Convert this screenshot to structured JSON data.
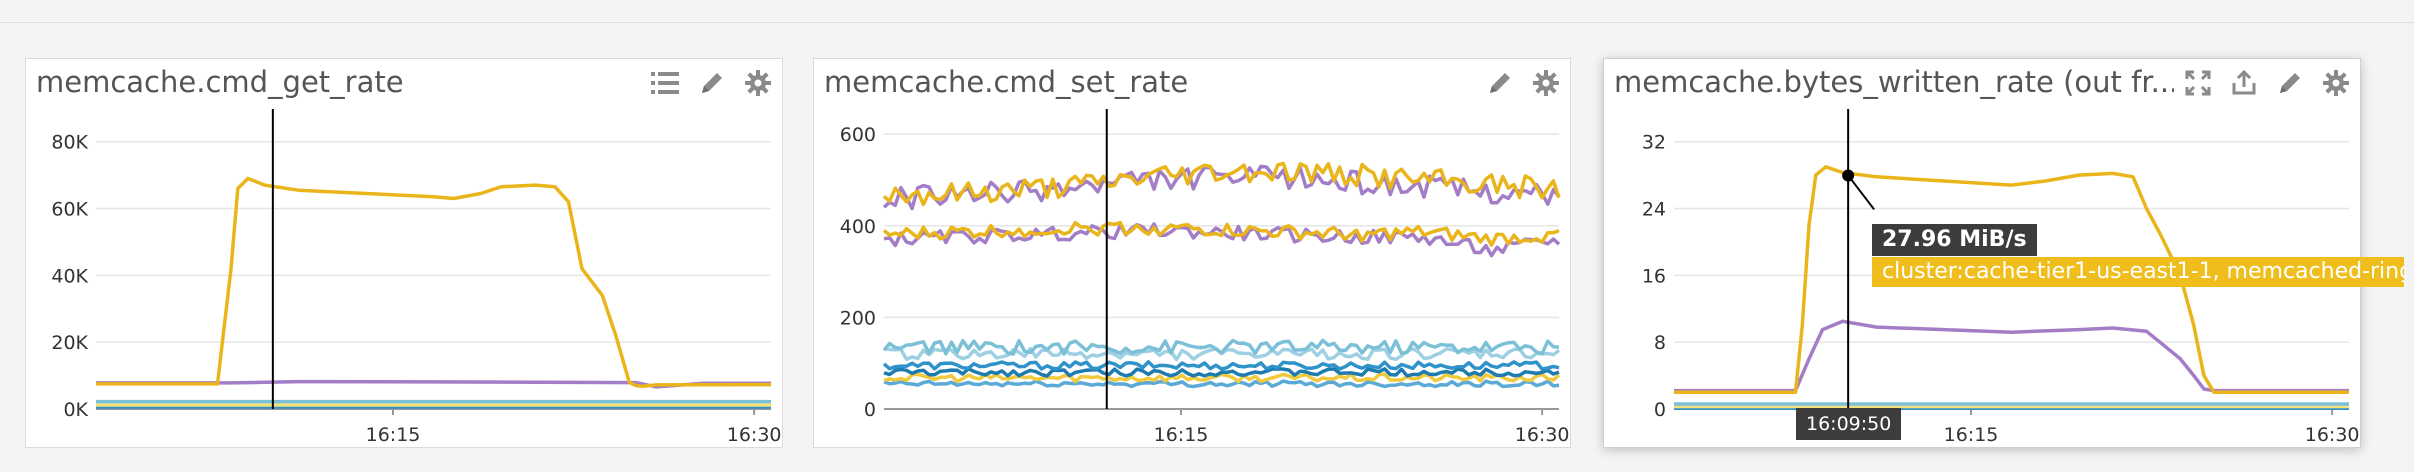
{
  "widgets": [
    {
      "title": "memcache.cmd_get_rate",
      "tools": [
        "list-icon",
        "pencil-icon",
        "gear-icon"
      ],
      "chart_data": {
        "type": "line",
        "y_ticks": [
          "80K",
          "60K",
          "40K",
          "20K",
          "0K"
        ],
        "x_ticks": [
          "16:15",
          "16:30"
        ],
        "ylim": [
          0,
          85000
        ],
        "xlim": [
          0,
          1
        ],
        "grid": true,
        "series": [
          {
            "color": "#e9b51a",
            "x": [
              0,
              0.18,
              0.2,
              0.21,
              0.225,
              0.25,
              0.3,
              0.4,
              0.5,
              0.53,
              0.57,
              0.6,
              0.65,
              0.68,
              0.7,
              0.72,
              0.75,
              0.77,
              0.79,
              0.8,
              0.81,
              0.83,
              1
            ],
            "y": [
              7500,
              7500,
              42000,
              66000,
              69000,
              67000,
              65500,
              64500,
              63500,
              63000,
              64500,
              66500,
              67000,
              66500,
              62000,
              42000,
              34000,
              22000,
              8000,
              7000,
              6800,
              7200,
              7300
            ]
          },
          {
            "color": "#a47dc7",
            "x": [
              0,
              0.2,
              0.3,
              0.5,
              0.8,
              0.83,
              0.9,
              1
            ],
            "y": [
              7800,
              7800,
              8200,
              8100,
              7900,
              6600,
              7700,
              7700
            ]
          },
          {
            "color": "#7cc0d8",
            "x": [
              0,
              1
            ],
            "y": [
              2200,
              2200
            ]
          },
          {
            "color": "#f3e27a",
            "x": [
              0,
              1
            ],
            "y": [
              1200,
              1200
            ]
          },
          {
            "color": "#2f93c9",
            "x": [
              0,
              1
            ],
            "y": [
              600,
              600
            ]
          }
        ],
        "cursor_x": 0.262
      }
    },
    {
      "title": "memcache.cmd_set_rate",
      "tools": [
        "pencil-icon",
        "gear-icon"
      ],
      "chart_data": {
        "type": "line",
        "y_ticks": [
          "600",
          "400",
          "200",
          "0"
        ],
        "x_ticks": [
          "16:15",
          "16:30"
        ],
        "ylim": [
          0,
          620
        ],
        "xlim": [
          0,
          1
        ],
        "grid": true,
        "series": [
          {
            "color": "#e9b51a",
            "base": [
              470,
              470,
              480,
              490,
              510,
              520,
              520,
              510,
              500,
              490,
              480
            ],
            "noise": 25
          },
          {
            "color": "#a47dc7",
            "base": [
              460,
              465,
              475,
              485,
              500,
              505,
              505,
              495,
              485,
              475,
              465
            ],
            "noise": 25
          },
          {
            "color": "#e9b51a",
            "base": [
              380,
              385,
              390,
              395,
              395,
              390,
              385,
              380,
              385,
              370,
              380
            ],
            "noise": 15
          },
          {
            "color": "#a47dc7",
            "base": [
              370,
              375,
              380,
              385,
              390,
              385,
              380,
              375,
              375,
              345,
              370
            ],
            "noise": 15
          },
          {
            "color": "#7cc0d8",
            "base": [
              135,
              135,
              135,
              135,
              135,
              135,
              135,
              135,
              135,
              135,
              135
            ],
            "noise": 15
          },
          {
            "color": "#9dd0e3",
            "base": [
              120,
              120,
              120,
              120,
              120,
              120,
              120,
              120,
              120,
              120,
              120
            ],
            "noise": 12
          },
          {
            "color": "#2f93c9",
            "base": [
              95,
              95,
              95,
              95,
              95,
              95,
              95,
              95,
              95,
              95,
              95
            ],
            "noise": 8
          },
          {
            "color": "#1d7bb0",
            "base": [
              80,
              80,
              80,
              80,
              80,
              80,
              80,
              80,
              80,
              80,
              80
            ],
            "noise": 8
          },
          {
            "color": "#f0c93c",
            "base": [
              68,
              68,
              68,
              68,
              68,
              68,
              68,
              68,
              68,
              68,
              68
            ],
            "noise": 8
          },
          {
            "color": "#5aa9d6",
            "base": [
              55,
              55,
              55,
              55,
              55,
              55,
              55,
              55,
              55,
              55,
              55
            ],
            "noise": 6
          }
        ],
        "cursor_x": 0.33
      }
    },
    {
      "title": "memcache.bytes_written_rate (out fr...",
      "tools": [
        "expand-icon",
        "share-icon",
        "pencil-icon",
        "gear-icon"
      ],
      "chart_data": {
        "type": "line",
        "y_ticks": [
          "32",
          "24",
          "16",
          "8",
          "0"
        ],
        "x_ticks": [
          "16:15",
          "16:30"
        ],
        "ylim": [
          0,
          34
        ],
        "xlim": [
          0,
          1
        ],
        "grid": true,
        "series": [
          {
            "color": "#e9b51a",
            "x": [
              0,
              0.18,
              0.19,
              0.2,
              0.21,
              0.225,
              0.25,
              0.3,
              0.4,
              0.5,
              0.55,
              0.6,
              0.65,
              0.68,
              0.7,
              0.72,
              0.75,
              0.77,
              0.785,
              0.8,
              0.85,
              1
            ],
            "y": [
              2,
              2,
              10,
              22,
              28,
              29,
              28.3,
              27.8,
              27.3,
              26.8,
              27.3,
              28,
              28.2,
              27.8,
              24,
              21,
              16,
              10,
              4,
              2,
              2,
              2
            ]
          },
          {
            "color": "#a47dc7",
            "x": [
              0,
              0.18,
              0.2,
              0.22,
              0.25,
              0.3,
              0.4,
              0.5,
              0.6,
              0.65,
              0.7,
              0.72,
              0.75,
              0.77,
              0.785,
              0.8,
              1
            ],
            "y": [
              2.2,
              2.2,
              6,
              9.5,
              10.5,
              9.8,
              9.5,
              9.2,
              9.5,
              9.7,
              9.3,
              8,
              6,
              4,
              2.4,
              2.2,
              2.2
            ]
          },
          {
            "color": "#7cc0d8",
            "x": [
              0,
              1
            ],
            "y": [
              0.6,
              0.6
            ]
          },
          {
            "color": "#f3e27a",
            "x": [
              0,
              1
            ],
            "y": [
              0.3,
              0.3
            ]
          },
          {
            "color": "#2f93c9",
            "x": [
              0,
              1
            ],
            "y": [
              0.1,
              0.1
            ]
          }
        ],
        "cursor_x": 0.258,
        "hover_point": {
          "x": 0.258,
          "y": 27.96
        }
      }
    }
  ],
  "tooltip": {
    "value": "27.96 MiB/s",
    "series": "cluster:cache-tier1-us-east1-1, memcached-ring"
  },
  "time_marker": "16:09:50"
}
